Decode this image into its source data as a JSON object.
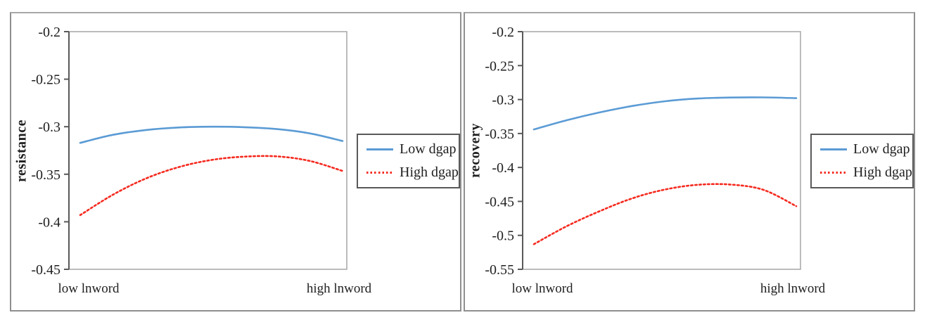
{
  "figure": {
    "background": "#ffffff"
  },
  "colors": {
    "series_blue": "#5B9BD5",
    "series_red": "#F52A1F",
    "panel_border": "#8F8F8F",
    "plot_border": "#A6A6A6",
    "axis_line": "#595959",
    "text": "#1F1F1F"
  },
  "chart_data": [
    {
      "type": "line",
      "title": "",
      "xlabel": "",
      "ylabel": "resistance",
      "x_categories": [
        "low lnword",
        "high lnword"
      ],
      "ylim": [
        -0.45,
        -0.2
      ],
      "yticks": [
        -0.2,
        -0.25,
        -0.3,
        -0.35,
        -0.4,
        -0.45
      ],
      "ytick_labels": [
        "-0.2",
        "-0.25",
        "-0.3",
        "-0.35",
        "-0.4",
        "-0.45"
      ],
      "grid": false,
      "legend_position": "right",
      "x_normalized": [
        0,
        0.125,
        0.25,
        0.375,
        0.5,
        0.625,
        0.75,
        0.875,
        1
      ],
      "series": [
        {
          "name": "Low dgap",
          "style": "solid",
          "color": "#5B9BD5",
          "values": [
            -0.317,
            -0.3085,
            -0.3035,
            -0.3008,
            -0.3,
            -0.3005,
            -0.3025,
            -0.307,
            -0.315
          ]
        },
        {
          "name": "High dgap",
          "style": "dotted",
          "color": "#F52A1F",
          "values": [
            -0.393,
            -0.3715,
            -0.3545,
            -0.3425,
            -0.335,
            -0.3315,
            -0.3312,
            -0.336,
            -0.3465
          ]
        }
      ]
    },
    {
      "type": "line",
      "title": "",
      "xlabel": "",
      "ylabel": "recovery",
      "x_categories": [
        "low lnword",
        "high lnword"
      ],
      "ylim": [
        -0.55,
        -0.2
      ],
      "yticks": [
        -0.2,
        -0.25,
        -0.3,
        -0.35,
        -0.4,
        -0.45,
        -0.5,
        -0.55
      ],
      "ytick_labels": [
        "-0.2",
        "-0.25",
        "-0.3",
        "-0.35",
        "-0.4",
        "-0.45",
        "-0.5",
        "-0.55"
      ],
      "grid": false,
      "legend_position": "right",
      "x_normalized": [
        0,
        0.125,
        0.25,
        0.375,
        0.5,
        0.625,
        0.75,
        0.875,
        1
      ],
      "series": [
        {
          "name": "Low dgap",
          "style": "solid",
          "color": "#5B9BD5",
          "values": [
            -0.344,
            -0.3305,
            -0.319,
            -0.3095,
            -0.3025,
            -0.2985,
            -0.297,
            -0.2968,
            -0.298
          ]
        },
        {
          "name": "High dgap",
          "style": "dotted",
          "color": "#F52A1F",
          "values": [
            -0.513,
            -0.4865,
            -0.4645,
            -0.4455,
            -0.4325,
            -0.4255,
            -0.4252,
            -0.433,
            -0.457
          ]
        }
      ]
    }
  ]
}
